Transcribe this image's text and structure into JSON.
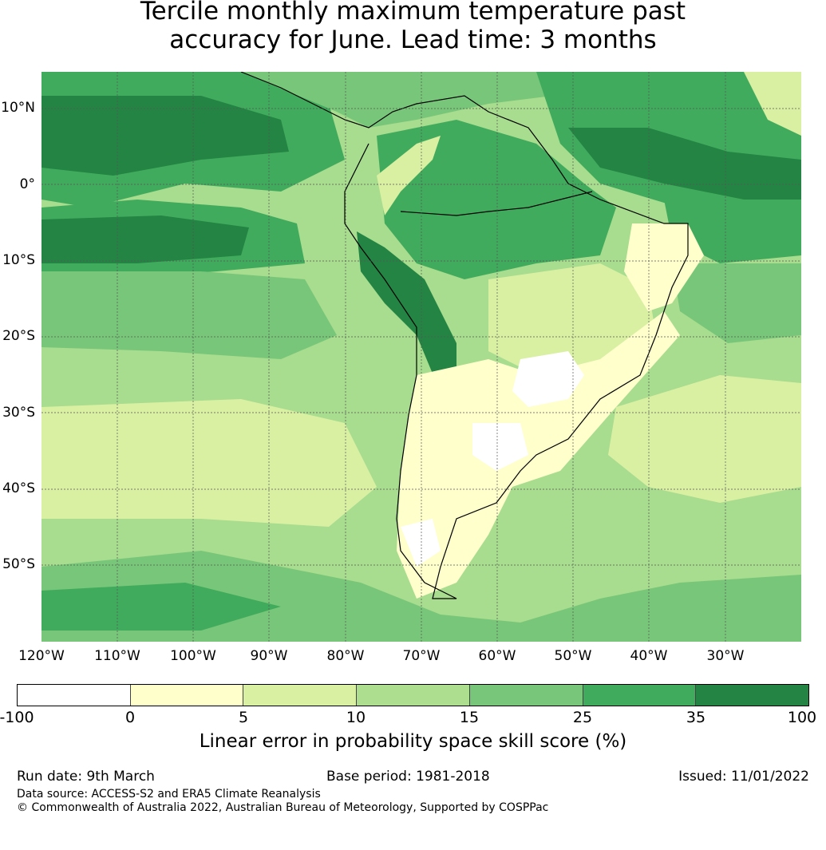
{
  "title": {
    "line1": "Tercile monthly maximum temperature past",
    "line2": "accuracy for June. Lead time: 3 months"
  },
  "map": {
    "region": "South America",
    "lat_labels": [
      "10°N",
      "0°",
      "10°S",
      "20°S",
      "30°S",
      "40°S",
      "50°S"
    ],
    "lon_labels": [
      "120°W",
      "110°W",
      "100°W",
      "90°W",
      "80°W",
      "70°W",
      "60°W",
      "50°W",
      "40°W",
      "30°W"
    ]
  },
  "colorbar": {
    "colors": [
      "#ffffff",
      "#ffffcc",
      "#d9f0a3",
      "#addd8e",
      "#78c679",
      "#41ab5d",
      "#238443"
    ],
    "tick_labels": [
      "-100",
      "0",
      "5",
      "10",
      "15",
      "25",
      "35",
      "100"
    ],
    "label": "Linear error in probability space skill score (%)"
  },
  "footer": {
    "run_date": "Run date: 9th March",
    "base_period": "Base period: 1981-2018",
    "issued": "Issued: 11/01/2022",
    "data_source": "Data source: ACCESS-S2 and ERA5 Climate Reanalysis",
    "copyright": "© Commonwealth of Australia 2022, Australian Bureau of Meteorology, Supported by COSPPac"
  }
}
